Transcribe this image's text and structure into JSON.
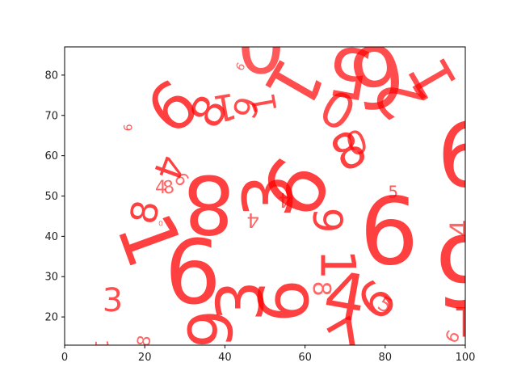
{
  "chart_data": {
    "type": "scatter",
    "title": "",
    "xlabel": "",
    "ylabel": "",
    "xlim": [
      0,
      100
    ],
    "ylim": [
      13,
      87
    ],
    "xticks": [
      0,
      20,
      40,
      60,
      80,
      100
    ],
    "yticks": [
      20,
      30,
      40,
      50,
      60,
      70,
      80
    ],
    "grid": false,
    "legend": "none",
    "mark_color": "#ff0000",
    "points": [
      {
        "x": 49,
        "y": 87,
        "label": "0",
        "rotation": 0,
        "size": 95,
        "alpha": 0.65
      },
      {
        "x": 57,
        "y": 78,
        "label": "1",
        "rotation": 120,
        "size": 85,
        "alpha": 0.7
      },
      {
        "x": 71,
        "y": 81,
        "label": "5",
        "rotation": -170,
        "size": 85,
        "alpha": 0.7
      },
      {
        "x": 78,
        "y": 80,
        "label": "6",
        "rotation": 170,
        "size": 105,
        "alpha": 0.7
      },
      {
        "x": 84,
        "y": 75,
        "label": "2",
        "rotation": -120,
        "size": 80,
        "alpha": 0.7
      },
      {
        "x": 92,
        "y": 79,
        "label": "1",
        "rotation": -120,
        "size": 70,
        "alpha": 0.7
      },
      {
        "x": 68,
        "y": 71,
        "label": "0",
        "rotation": 30,
        "size": 60,
        "alpha": 0.7
      },
      {
        "x": 27,
        "y": 72,
        "label": "6",
        "rotation": -40,
        "size": 80,
        "alpha": 0.75
      },
      {
        "x": 36,
        "y": 71,
        "label": "8",
        "rotation": -60,
        "size": 55,
        "alpha": 0.75
      },
      {
        "x": 40,
        "y": 72,
        "label": "1",
        "rotation": 170,
        "size": 45,
        "alpha": 0.7
      },
      {
        "x": 45,
        "y": 72,
        "label": "6",
        "rotation": 110,
        "size": 40,
        "alpha": 0.7
      },
      {
        "x": 50,
        "y": 73,
        "label": "1",
        "rotation": -100,
        "size": 40,
        "alpha": 0.7
      },
      {
        "x": 16,
        "y": 67,
        "label": "6",
        "rotation": -90,
        "size": 14,
        "alpha": 0.7
      },
      {
        "x": 44,
        "y": 82,
        "label": "6",
        "rotation": -60,
        "size": 14,
        "alpha": 0.6
      },
      {
        "x": 26,
        "y": 57,
        "label": "4",
        "rotation": 110,
        "size": 45,
        "alpha": 0.75
      },
      {
        "x": 24,
        "y": 52,
        "label": "4",
        "rotation": 0,
        "size": 22,
        "alpha": 0.6
      },
      {
        "x": 26,
        "y": 52,
        "label": "8",
        "rotation": -10,
        "size": 22,
        "alpha": 0.6
      },
      {
        "x": 29,
        "y": 54,
        "label": "6",
        "rotation": 50,
        "size": 22,
        "alpha": 0.6
      },
      {
        "x": 36,
        "y": 48,
        "label": "8",
        "rotation": 180,
        "size": 100,
        "alpha": 0.75
      },
      {
        "x": 20,
        "y": 46,
        "label": "8",
        "rotation": -80,
        "size": 45,
        "alpha": 0.75
      },
      {
        "x": 21,
        "y": 39,
        "label": "1",
        "rotation": 70,
        "size": 95,
        "alpha": 0.75
      },
      {
        "x": 12,
        "y": 24,
        "label": "3",
        "rotation": 0,
        "size": 40,
        "alpha": 0.7
      },
      {
        "x": 51,
        "y": 50,
        "label": "3",
        "rotation": -90,
        "size": 85,
        "alpha": 0.75
      },
      {
        "x": 58,
        "y": 52,
        "label": "6",
        "rotation": -60,
        "size": 100,
        "alpha": 0.75
      },
      {
        "x": 55,
        "y": 49,
        "label": "4",
        "rotation": 180,
        "size": 25,
        "alpha": 0.6
      },
      {
        "x": 47,
        "y": 44,
        "label": "4",
        "rotation": 180,
        "size": 25,
        "alpha": 0.6
      },
      {
        "x": 71,
        "y": 61,
        "label": "8",
        "rotation": -30,
        "size": 60,
        "alpha": 0.75
      },
      {
        "x": 73,
        "y": 63,
        "label": "0",
        "rotation": -20,
        "size": 40,
        "alpha": 0.7
      },
      {
        "x": 66,
        "y": 44,
        "label": "6",
        "rotation": -90,
        "size": 50,
        "alpha": 0.75
      },
      {
        "x": 81,
        "y": 41,
        "label": "6",
        "rotation": 0,
        "size": 115,
        "alpha": 0.75
      },
      {
        "x": 82,
        "y": 51,
        "label": "5",
        "rotation": 0,
        "size": 20,
        "alpha": 0.65
      },
      {
        "x": 68,
        "y": 33,
        "label": "1",
        "rotation": 90,
        "size": 60,
        "alpha": 0.75
      },
      {
        "x": 70,
        "y": 25,
        "label": "4",
        "rotation": 10,
        "size": 80,
        "alpha": 0.75
      },
      {
        "x": 78,
        "y": 24,
        "label": "6",
        "rotation": -40,
        "size": 60,
        "alpha": 0.75
      },
      {
        "x": 80,
        "y": 23,
        "label": "5",
        "rotation": 30,
        "size": 25,
        "alpha": 0.6
      },
      {
        "x": 64,
        "y": 27,
        "label": "8",
        "rotation": 90,
        "size": 30,
        "alpha": 0.6
      },
      {
        "x": 32,
        "y": 31,
        "label": "6",
        "rotation": 0,
        "size": 110,
        "alpha": 0.75
      },
      {
        "x": 44,
        "y": 24,
        "label": "3",
        "rotation": -90,
        "size": 80,
        "alpha": 0.75
      },
      {
        "x": 55,
        "y": 24,
        "label": "6",
        "rotation": -90,
        "size": 85,
        "alpha": 0.75
      },
      {
        "x": 36,
        "y": 17,
        "label": "6",
        "rotation": 90,
        "size": 75,
        "alpha": 0.75
      },
      {
        "x": 20,
        "y": 14,
        "label": "8",
        "rotation": -80,
        "size": 22,
        "alpha": 0.6
      },
      {
        "x": 9,
        "y": 13,
        "label": "1",
        "rotation": 90,
        "size": 22,
        "alpha": 0.6
      },
      {
        "x": 71,
        "y": 14,
        "label": "7",
        "rotation": -30,
        "size": 70,
        "alpha": 0.75
      },
      {
        "x": 100,
        "y": 60,
        "label": "6",
        "rotation": 0,
        "size": 110,
        "alpha": 0.75
      },
      {
        "x": 100,
        "y": 32,
        "label": "6",
        "rotation": 180,
        "size": 120,
        "alpha": 0.75
      },
      {
        "x": 99,
        "y": 42,
        "label": "4",
        "rotation": -90,
        "size": 35,
        "alpha": 0.6
      },
      {
        "x": 100,
        "y": 19,
        "label": "1",
        "rotation": 180,
        "size": 50,
        "alpha": 0.75
      },
      {
        "x": 97,
        "y": 15,
        "label": "6",
        "rotation": -60,
        "size": 22,
        "alpha": 0.6
      },
      {
        "x": 24,
        "y": 43,
        "label": "0",
        "rotation": 0,
        "size": 9,
        "alpha": 0.6
      }
    ]
  }
}
